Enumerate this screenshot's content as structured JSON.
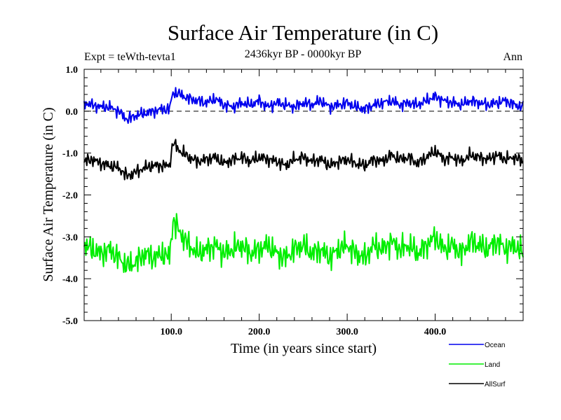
{
  "chart_data": {
    "type": "line",
    "title": "Surface Air Temperature (in C)",
    "subtitle": "2436kyr BP - 0000kyr BP",
    "experiment": "Expt = teWth-tevta1",
    "season": "Ann",
    "xlabel": "Time (in years since start)",
    "ylabel": "Surface Air Temperature (in C)",
    "xlim": [
      1,
      500
    ],
    "ylim": [
      -5.0,
      1.0
    ],
    "xticks": [
      100,
      200,
      300,
      400
    ],
    "xtick_labels": [
      "100.0",
      "200.0",
      "300.0",
      "400.0"
    ],
    "yticks": [
      1.0,
      0.0,
      -1.0,
      -2.0,
      -3.0,
      -4.0,
      -5.0
    ],
    "ytick_labels": [
      "1.0",
      "0.0",
      "-1.0",
      "-2.0",
      "-3.0",
      "-4.0",
      "-5.0"
    ],
    "reference_line": 0.0,
    "legend_position": "bottom-right",
    "series": [
      {
        "name": "Ocean",
        "color": "#0000ee",
        "x": [
          1,
          10,
          20,
          30,
          40,
          50,
          60,
          70,
          80,
          90,
          98,
          102,
          110,
          120,
          130,
          140,
          150,
          160,
          170,
          180,
          190,
          200,
          210,
          220,
          230,
          240,
          250,
          260,
          270,
          280,
          290,
          300,
          310,
          320,
          330,
          340,
          350,
          360,
          370,
          380,
          390,
          400,
          410,
          420,
          430,
          440,
          450,
          460,
          470,
          480,
          490,
          500
        ],
        "values": [
          0.2,
          0.15,
          0.1,
          0.1,
          0.0,
          -0.2,
          -0.1,
          -0.05,
          0.0,
          0.05,
          0.05,
          0.45,
          0.4,
          0.3,
          0.25,
          0.2,
          0.3,
          0.15,
          0.1,
          0.2,
          0.15,
          0.25,
          0.1,
          0.2,
          0.15,
          0.1,
          0.2,
          0.15,
          0.25,
          0.1,
          0.15,
          0.2,
          0.1,
          0.05,
          0.15,
          0.2,
          0.25,
          0.15,
          0.2,
          0.15,
          0.25,
          0.35,
          0.25,
          0.2,
          0.15,
          0.25,
          0.2,
          0.15,
          0.2,
          0.25,
          0.15,
          0.1
        ]
      },
      {
        "name": "Land",
        "color": "#00ee00",
        "x": [
          1,
          10,
          20,
          30,
          40,
          50,
          60,
          70,
          80,
          90,
          98,
          102,
          110,
          120,
          130,
          140,
          150,
          160,
          170,
          180,
          190,
          200,
          210,
          220,
          230,
          240,
          250,
          260,
          270,
          280,
          290,
          300,
          310,
          320,
          330,
          340,
          350,
          360,
          370,
          380,
          390,
          400,
          410,
          420,
          430,
          440,
          450,
          460,
          470,
          480,
          490,
          500
        ],
        "values": [
          -3.2,
          -3.3,
          -3.4,
          -3.3,
          -3.5,
          -3.7,
          -3.6,
          -3.4,
          -3.5,
          -3.4,
          -3.5,
          -2.6,
          -2.9,
          -3.2,
          -3.4,
          -3.3,
          -3.2,
          -3.4,
          -3.3,
          -3.2,
          -3.4,
          -3.3,
          -3.2,
          -3.4,
          -3.5,
          -3.3,
          -3.2,
          -3.4,
          -3.3,
          -3.5,
          -3.3,
          -3.2,
          -3.4,
          -3.5,
          -3.2,
          -3.3,
          -3.1,
          -3.3,
          -3.2,
          -3.4,
          -3.2,
          -3.0,
          -3.3,
          -3.2,
          -3.4,
          -3.1,
          -3.2,
          -3.3,
          -3.1,
          -3.3,
          -3.2,
          -3.4
        ]
      },
      {
        "name": "AllSurf",
        "color": "#000000",
        "x": [
          1,
          10,
          20,
          30,
          40,
          50,
          60,
          70,
          80,
          90,
          98,
          102,
          110,
          120,
          130,
          140,
          150,
          160,
          170,
          180,
          190,
          200,
          210,
          220,
          230,
          240,
          250,
          260,
          270,
          280,
          290,
          300,
          310,
          320,
          330,
          340,
          350,
          360,
          370,
          380,
          390,
          400,
          410,
          420,
          430,
          440,
          450,
          460,
          470,
          480,
          490,
          500
        ],
        "values": [
          -1.2,
          -1.15,
          -1.25,
          -1.3,
          -1.35,
          -1.55,
          -1.45,
          -1.35,
          -1.3,
          -1.3,
          -1.3,
          -0.75,
          -0.95,
          -1.1,
          -1.2,
          -1.15,
          -1.1,
          -1.25,
          -1.15,
          -1.1,
          -1.2,
          -1.1,
          -1.15,
          -1.2,
          -1.3,
          -1.15,
          -1.1,
          -1.2,
          -1.15,
          -1.3,
          -1.2,
          -1.15,
          -1.25,
          -1.3,
          -1.15,
          -1.2,
          -1.05,
          -1.15,
          -1.1,
          -1.25,
          -1.1,
          -0.95,
          -1.15,
          -1.1,
          -1.2,
          -1.05,
          -1.1,
          -1.15,
          -1.05,
          -1.15,
          -1.1,
          -1.2
        ]
      }
    ]
  }
}
